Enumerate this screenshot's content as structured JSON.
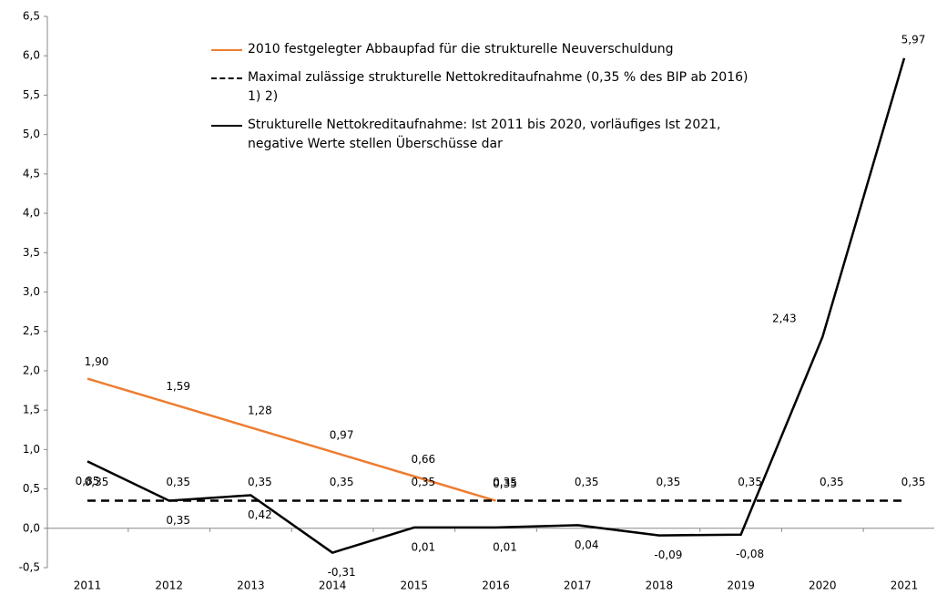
{
  "chart_data": {
    "type": "line",
    "categories": [
      "2011",
      "2012",
      "2013",
      "2014",
      "2015",
      "2016",
      "2017",
      "2018",
      "2019",
      "2020",
      "2021"
    ],
    "series": [
      {
        "name": "2010 festgelegter Abbaupfad für die strukturelle Neuverschuldung",
        "color": "#ed7d31",
        "dashed": false,
        "values": [
          1.9,
          1.59,
          1.28,
          0.97,
          0.66,
          0.35,
          null,
          null,
          null,
          null,
          null
        ],
        "value_labels": [
          "1,90",
          "1,59",
          "1,28",
          "0,97",
          "0,66",
          "0,35",
          null,
          null,
          null,
          null,
          null
        ]
      },
      {
        "name": "Maximal zulässige strukturelle Nettokreditaufnahme (0,35 % des BIP ab 2016) 1) 2)",
        "color": "#000000",
        "dashed": true,
        "values": [
          0.35,
          0.35,
          0.35,
          0.35,
          0.35,
          0.35,
          0.35,
          0.35,
          0.35,
          0.35,
          0.35
        ],
        "value_labels": [
          "0,35",
          "0,35",
          "0,35",
          "0,35",
          "0,35",
          "0,35",
          "0,35",
          "0,35",
          "0,35",
          "0,35",
          "0,35"
        ]
      },
      {
        "name": "Strukturelle Nettokreditaufnahme: Ist 2011 bis 2020, vorläufiges Ist 2021, negative Werte stellen Überschüsse dar",
        "color": "#000000",
        "dashed": false,
        "values": [
          0.85,
          0.35,
          0.42,
          -0.31,
          0.01,
          0.01,
          0.04,
          -0.09,
          -0.08,
          2.43,
          5.97
        ],
        "value_labels": [
          "0,85",
          "0,35",
          "0,42",
          "-0,31",
          "0,01",
          "0,01",
          "0,04",
          "-0,09",
          "-0,08",
          "2,43",
          "5,97"
        ]
      }
    ],
    "ylim": [
      -0.5,
      6.5
    ],
    "yticks": [
      {
        "value": -0.5,
        "label": "-0,5"
      },
      {
        "value": 0,
        "label": "0,0"
      },
      {
        "value": 0.5,
        "label": "0,5"
      },
      {
        "value": 1,
        "label": "1,0"
      },
      {
        "value": 1.5,
        "label": "1,5"
      },
      {
        "value": 2,
        "label": "2,0"
      },
      {
        "value": 2.5,
        "label": "2,5"
      },
      {
        "value": 3,
        "label": "3,0"
      },
      {
        "value": 3.5,
        "label": "3,5"
      },
      {
        "value": 4,
        "label": "4,0"
      },
      {
        "value": 4.5,
        "label": "4,5"
      },
      {
        "value": 5,
        "label": "5,0"
      },
      {
        "value": 5.5,
        "label": "5,5"
      },
      {
        "value": 6,
        "label": "6,0"
      },
      {
        "value": 6.5,
        "label": "6,5"
      }
    ]
  }
}
